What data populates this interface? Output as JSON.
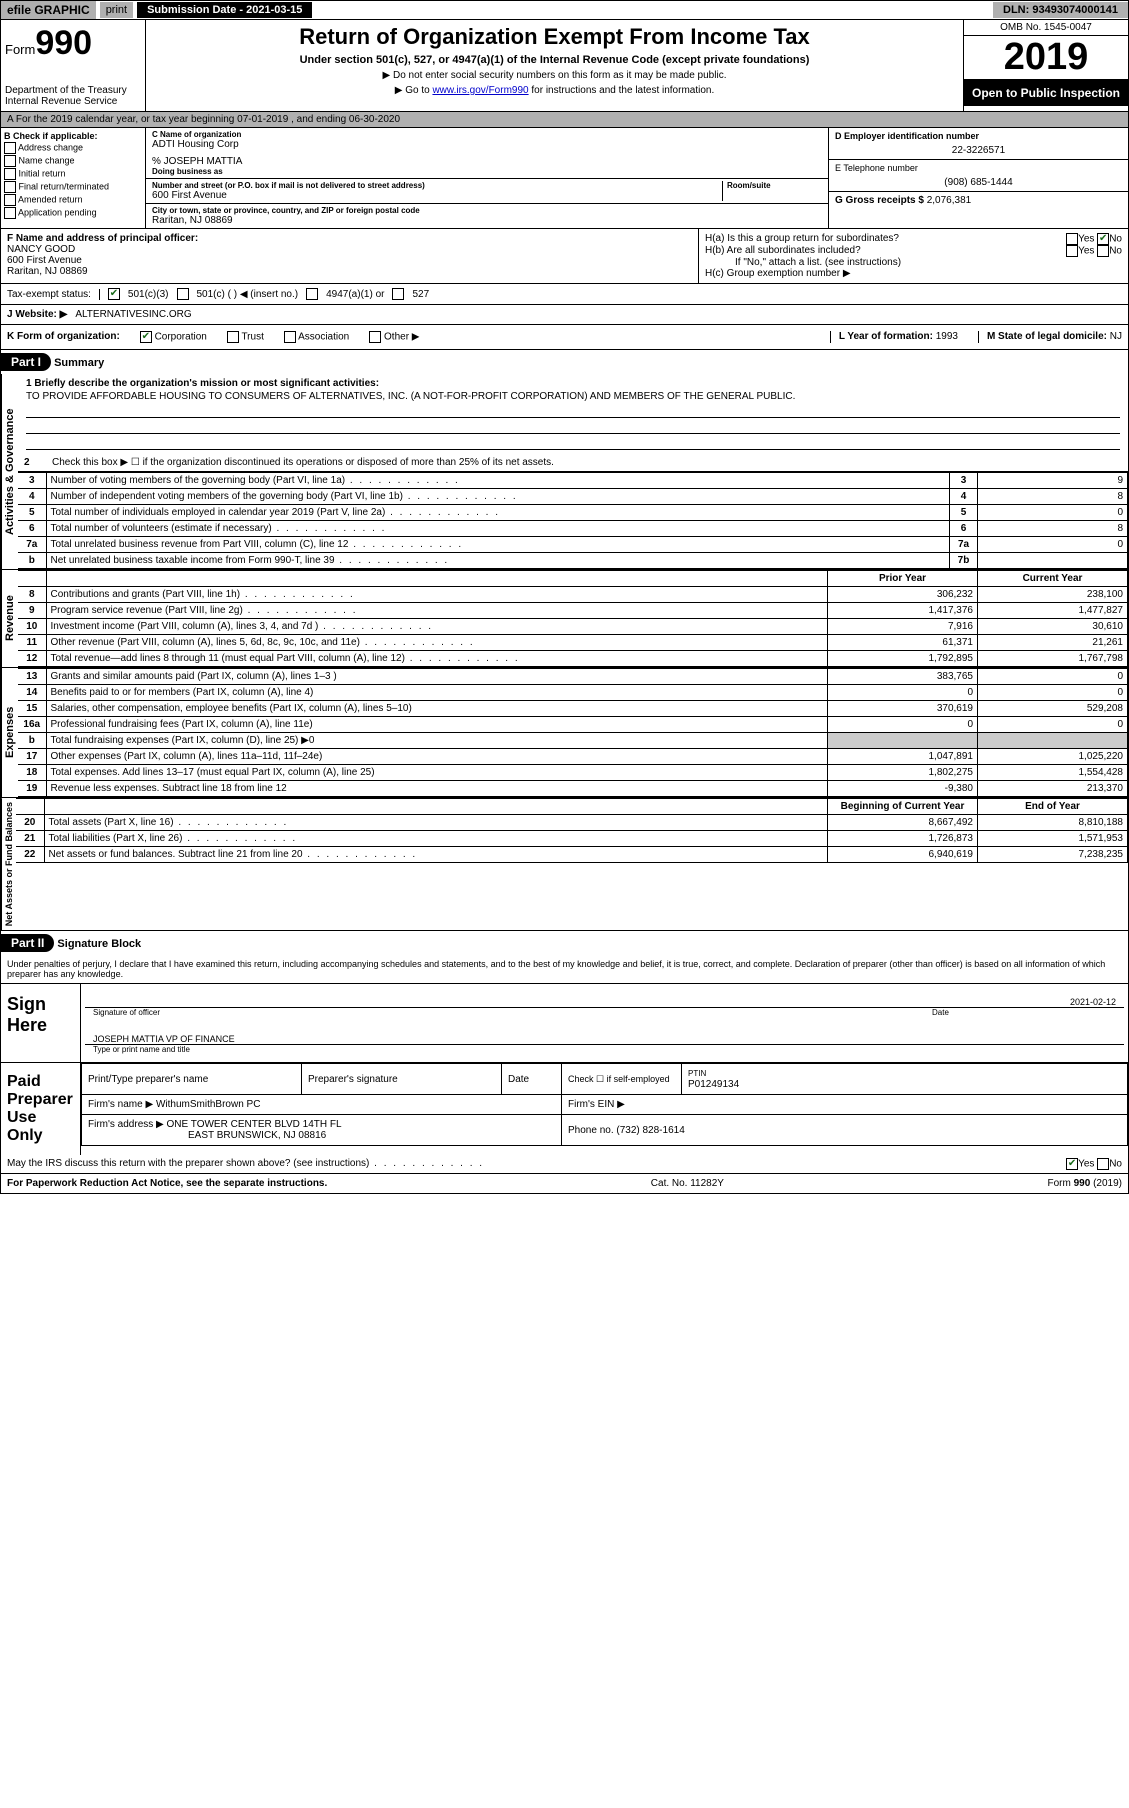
{
  "topbar": {
    "efile": "efile GRAPHIC",
    "print": "print",
    "submission_label": "Submission Date - ",
    "submission_date": "2021-03-15",
    "dln_label": "DLN: ",
    "dln": "93493074000141"
  },
  "header": {
    "form_label": "Form",
    "form_no": "990",
    "dept": "Department of the Treasury\nInternal Revenue Service",
    "title": "Return of Organization Exempt From Income Tax",
    "sub": "Under section 501(c), 527, or 4947(a)(1) of the Internal Revenue Code (except private foundations)",
    "note1": "▶ Do not enter social security numbers on this form as it may be made public.",
    "note2_pre": "▶ Go to ",
    "note2_link": "www.irs.gov/Form990",
    "note2_post": " for instructions and the latest information.",
    "omb": "OMB No. 1545-0047",
    "year": "2019",
    "open": "Open to Public Inspection"
  },
  "period": {
    "text": "A For the 2019 calendar year, or tax year beginning 07-01-2019    , and ending 06-30-2020"
  },
  "box_b": {
    "heading": "B Check if applicable:",
    "opts": [
      "Address change",
      "Name change",
      "Initial return",
      "Final return/terminated",
      "Amended return",
      "Application pending"
    ]
  },
  "box_c": {
    "name_label": "C Name of organization",
    "name": "ADTI Housing Corp",
    "care_of": "% JOSEPH MATTIA",
    "dba_label": "Doing business as",
    "addr_label": "Number and street (or P.O. box if mail is not delivered to street address)",
    "room_label": "Room/suite",
    "addr": "600 First Avenue",
    "city_label": "City or town, state or province, country, and ZIP or foreign postal code",
    "city": "Raritan, NJ  08869"
  },
  "box_d": {
    "ein_label": "D Employer identification number",
    "ein": "22-3226571",
    "tel_label": "E Telephone number",
    "tel": "(908) 685-1444",
    "gross_label": "G Gross receipts $ ",
    "gross": "2,076,381"
  },
  "box_f": {
    "label": "F  Name and address of principal officer:",
    "name": "NANCY GOOD",
    "addr1": "600 First Avenue",
    "addr2": "Raritan, NJ  08869"
  },
  "box_h": {
    "ha": "H(a)  Is this a group return for subordinates?",
    "hb": "H(b)  Are all subordinates included?",
    "hb_note": "If \"No,\" attach a list. (see instructions)",
    "hc": "H(c)  Group exemption number ▶",
    "yes": "Yes",
    "no": "No"
  },
  "tax_status": {
    "label": "Tax-exempt status:",
    "c3": "501(c)(3)",
    "c": "501(c) (  ) ◀ (insert no.)",
    "a1": "4947(a)(1) or",
    "s527": "527"
  },
  "website": {
    "label": "J   Website: ▶",
    "value": "ALTERNATIVESINC.ORG"
  },
  "row_k": {
    "k_label": "K Form of organization:",
    "corp": "Corporation",
    "trust": "Trust",
    "assoc": "Association",
    "other": "Other ▶",
    "l_label": "L Year of formation: ",
    "l_val": "1993",
    "m_label": "M State of legal domicile: ",
    "m_val": "NJ"
  },
  "part1": {
    "header": "Part I",
    "title": "Summary",
    "q1_label": "1   Briefly describe the organization's mission or most significant activities:",
    "q1_text": "TO PROVIDE AFFORDABLE HOUSING TO CONSUMERS OF ALTERNATIVES, INC. (A NOT-FOR-PROFIT CORPORATION) AND MEMBERS OF THE GENERAL PUBLIC.",
    "q2": "Check this box ▶ ☐  if the organization discontinued its operations or disposed of more than 25% of its net assets.",
    "governance_label": "Activities & Governance",
    "revenue_label": "Revenue",
    "expenses_label": "Expenses",
    "netassets_label": "Net Assets or Fund Balances",
    "governance_rows": [
      {
        "n": "3",
        "t": "Number of voting members of the governing body (Part VI, line 1a)",
        "box": "3",
        "v": "9"
      },
      {
        "n": "4",
        "t": "Number of independent voting members of the governing body (Part VI, line 1b)",
        "box": "4",
        "v": "8"
      },
      {
        "n": "5",
        "t": "Total number of individuals employed in calendar year 2019 (Part V, line 2a)",
        "box": "5",
        "v": "0"
      },
      {
        "n": "6",
        "t": "Total number of volunteers (estimate if necessary)",
        "box": "6",
        "v": "8"
      },
      {
        "n": "7a",
        "t": "Total unrelated business revenue from Part VIII, column (C), line 12",
        "box": "7a",
        "v": "0"
      },
      {
        "n": "b",
        "t": "Net unrelated business taxable income from Form 990-T, line 39",
        "box": "7b",
        "v": ""
      }
    ],
    "col_prior": "Prior Year",
    "col_current": "Current Year",
    "revenue_rows": [
      {
        "n": "8",
        "t": "Contributions and grants (Part VIII, line 1h)",
        "p": "306,232",
        "c": "238,100"
      },
      {
        "n": "9",
        "t": "Program service revenue (Part VIII, line 2g)",
        "p": "1,417,376",
        "c": "1,477,827"
      },
      {
        "n": "10",
        "t": "Investment income (Part VIII, column (A), lines 3, 4, and 7d )",
        "p": "7,916",
        "c": "30,610"
      },
      {
        "n": "11",
        "t": "Other revenue (Part VIII, column (A), lines 5, 6d, 8c, 9c, 10c, and 11e)",
        "p": "61,371",
        "c": "21,261"
      },
      {
        "n": "12",
        "t": "Total revenue—add lines 8 through 11 (must equal Part VIII, column (A), line 12)",
        "p": "1,792,895",
        "c": "1,767,798"
      }
    ],
    "expense_rows": [
      {
        "n": "13",
        "t": "Grants and similar amounts paid (Part IX, column (A), lines 1–3 )",
        "p": "383,765",
        "c": "0"
      },
      {
        "n": "14",
        "t": "Benefits paid to or for members (Part IX, column (A), line 4)",
        "p": "0",
        "c": "0"
      },
      {
        "n": "15",
        "t": "Salaries, other compensation, employee benefits (Part IX, column (A), lines 5–10)",
        "p": "370,619",
        "c": "529,208"
      },
      {
        "n": "16a",
        "t": "Professional fundraising fees (Part IX, column (A), line 11e)",
        "p": "0",
        "c": "0"
      },
      {
        "n": "b",
        "t": "Total fundraising expenses (Part IX, column (D), line 25) ▶0",
        "p": "shaded",
        "c": "shaded"
      },
      {
        "n": "17",
        "t": "Other expenses (Part IX, column (A), lines 11a–11d, 11f–24e)",
        "p": "1,047,891",
        "c": "1,025,220"
      },
      {
        "n": "18",
        "t": "Total expenses. Add lines 13–17 (must equal Part IX, column (A), line 25)",
        "p": "1,802,275",
        "c": "1,554,428"
      },
      {
        "n": "19",
        "t": "Revenue less expenses. Subtract line 18 from line 12",
        "p": "-9,380",
        "c": "213,370"
      }
    ],
    "col_begin": "Beginning of Current Year",
    "col_end": "End of Year",
    "net_rows": [
      {
        "n": "20",
        "t": "Total assets (Part X, line 16)",
        "p": "8,667,492",
        "c": "8,810,188"
      },
      {
        "n": "21",
        "t": "Total liabilities (Part X, line 26)",
        "p": "1,726,873",
        "c": "1,571,953"
      },
      {
        "n": "22",
        "t": "Net assets or fund balances. Subtract line 21 from line 20",
        "p": "6,940,619",
        "c": "7,238,235"
      }
    ]
  },
  "part2": {
    "header": "Part II",
    "title": "Signature Block",
    "intro": "Under penalties of perjury, I declare that I have examined this return, including accompanying schedules and statements, and to the best of my knowledge and belief, it is true, correct, and complete. Declaration of preparer (other than officer) is based on all information of which preparer has any knowledge.",
    "sign_here": "Sign Here",
    "sig_officer": "Signature of officer",
    "date_label": "Date",
    "sig_date": "2021-02-12",
    "officer_name": "JOSEPH MATTIA  VP OF FINANCE",
    "type_name": "Type or print name and title",
    "paid_prep": "Paid Preparer Use Only",
    "prep_name_label": "Print/Type preparer's name",
    "prep_sig_label": "Preparer's signature",
    "check_self": "Check ☐ if self-employed",
    "ptin_label": "PTIN",
    "ptin": "P01249134",
    "firm_name_label": "Firm's name    ▶ ",
    "firm_name": "WithumSmithBrown PC",
    "firm_ein_label": "Firm's EIN ▶",
    "firm_addr_label": "Firm's address ▶ ",
    "firm_addr1": "ONE TOWER CENTER BLVD 14TH FL",
    "firm_addr2": "EAST BRUNSWICK, NJ  08816",
    "phone_label": "Phone no. ",
    "phone": "(732) 828-1614",
    "discuss": "May the IRS discuss this return with the preparer shown above? (see instructions)"
  },
  "footer": {
    "pra": "For Paperwork Reduction Act Notice, see the separate instructions.",
    "cat": "Cat. No. 11282Y",
    "form": "Form 990 (2019)"
  }
}
